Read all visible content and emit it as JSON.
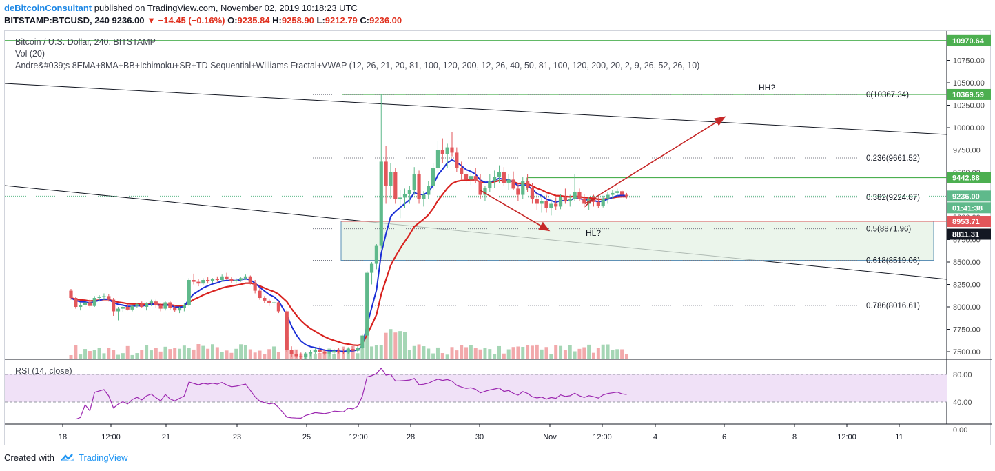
{
  "header": {
    "author": "deBitcoinConsultant",
    "published": "published on TradingView.com, November 02, 2019 10:18:23 UTC",
    "symbol_line": "BITSTAMP:BTCUSD, 240",
    "last": "9236.00",
    "change": "▼ −14.45 (−0.16%)",
    "o_label": "O:",
    "o": "9235.84",
    "h_label": "H:",
    "h": "9258.90",
    "l_label": "L:",
    "l": "9212.79",
    "c_label": "C:",
    "c": "9236.00"
  },
  "legend": {
    "title": "Bitcoin / U.S. Dollar, 240, BITSTAMP",
    "vol": "Vol (20)",
    "indicators": "Andre&#039;s 8EMA+8MA+BB+Ichimoku+SR+TD Sequential+Williams Fractal+VWAP (12, 26, 21, 20, 81, 100, 120, 200, 12, 26, 40, 50, 81, 100, 120, 200, 20, 2, 9, 26, 52, 26, 10)",
    "rsi": "RSI (14, close)"
  },
  "footer": {
    "created_with": "Created with",
    "brand": "TradingView"
  },
  "colors": {
    "up": "#5fb98b",
    "down": "#e2565a",
    "ema_blue": "#1b2fd6",
    "ma_red": "#d8221f",
    "level_green": "#4caf50",
    "arrow_red": "#c62828",
    "rsi_line": "#9c27b0",
    "rsi_fill": "#f0e1f7"
  },
  "chart_data": {
    "type": "candlestick",
    "symbol": "BITSTAMP:BTCUSD",
    "timeframe": "240",
    "ylim": [
      7500,
      11000
    ],
    "price_ticks": [
      "10750.00",
      "10500.00",
      "10250.00",
      "10000.00",
      "9750.00",
      "9500.00",
      "9250.00",
      "9000.00",
      "8750.00",
      "8500.00",
      "8250.00",
      "8000.00",
      "7750.00",
      "7500.00"
    ],
    "time_ticks": [
      "18",
      "12:00",
      "21",
      "23",
      "25",
      "12:00",
      "28",
      "30",
      "Nov",
      "12:00",
      "4",
      "6",
      "8",
      "12:00",
      "11"
    ],
    "price_tags": [
      {
        "text": "10970.64",
        "value": 10970.64,
        "kind": "green"
      },
      {
        "text": "10369.59",
        "value": 10369.59,
        "kind": "green"
      },
      {
        "text": "9442.88",
        "value": 9442.88,
        "kind": "green"
      },
      {
        "text": "9236.00",
        "value": 9236,
        "kind": "price"
      },
      {
        "text": "01:41:38",
        "value": 9150,
        "kind": "timer"
      },
      {
        "text": "8953.71",
        "value": 8953.71,
        "kind": "red"
      },
      {
        "text": "8811.31",
        "value": 8811.31,
        "kind": "black"
      }
    ],
    "fib_levels": [
      {
        "label": "0(10367.34)",
        "value": 10367.34
      },
      {
        "label": "0.236(9661.52)",
        "value": 9661.52
      },
      {
        "label": "0.382(9224.87)",
        "value": 9224.87
      },
      {
        "label": "0.5(8871.96)",
        "value": 8871.96
      },
      {
        "label": "0.618(8519.06)",
        "value": 8519.06
      },
      {
        "label": "0.786(8016.61)",
        "value": 8016.61
      }
    ],
    "annotations": [
      "HH?",
      "HL?"
    ],
    "candles": [
      [
        8180,
        8200,
        8080,
        8100
      ],
      [
        8100,
        8110,
        7980,
        8000
      ],
      [
        8000,
        8050,
        7960,
        8020
      ],
      [
        8020,
        8070,
        8000,
        8050
      ],
      [
        8050,
        8090,
        7990,
        8010
      ],
      [
        8010,
        8120,
        8000,
        8100
      ],
      [
        8100,
        8130,
        8060,
        8110
      ],
      [
        8110,
        8150,
        8080,
        8120
      ],
      [
        8120,
        8140,
        8060,
        8080
      ],
      [
        8080,
        8100,
        7900,
        7950
      ],
      [
        7950,
        8000,
        7850,
        7980
      ],
      [
        7980,
        8010,
        7940,
        8000
      ],
      [
        8000,
        8030,
        7960,
        7970
      ],
      [
        7970,
        8020,
        7950,
        8010
      ],
      [
        8010,
        8040,
        7990,
        8030
      ],
      [
        8030,
        8060,
        7990,
        8000
      ],
      [
        8000,
        8050,
        7960,
        8040
      ],
      [
        8040,
        8080,
        8010,
        8060
      ],
      [
        8060,
        8080,
        7990,
        8020
      ],
      [
        8020,
        8040,
        7950,
        7980
      ],
      [
        7980,
        8060,
        7960,
        8050
      ],
      [
        8050,
        8070,
        7970,
        7990
      ],
      [
        7990,
        8020,
        7940,
        7960
      ],
      [
        7960,
        8000,
        7930,
        7990
      ],
      [
        7990,
        8040,
        7950,
        8020
      ],
      [
        8020,
        8320,
        8010,
        8300
      ],
      [
        8300,
        8370,
        8250,
        8280
      ],
      [
        8280,
        8310,
        8230,
        8260
      ],
      [
        8260,
        8320,
        8240,
        8300
      ],
      [
        8300,
        8330,
        8260,
        8290
      ],
      [
        8290,
        8320,
        8270,
        8310
      ],
      [
        8310,
        8340,
        8280,
        8300
      ],
      [
        8300,
        8360,
        8280,
        8340
      ],
      [
        8340,
        8380,
        8300,
        8310
      ],
      [
        8310,
        8330,
        8270,
        8290
      ],
      [
        8290,
        8320,
        8260,
        8300
      ],
      [
        8300,
        8330,
        8280,
        8320
      ],
      [
        8320,
        8360,
        8300,
        8340
      ],
      [
        8340,
        8350,
        8250,
        8270
      ],
      [
        8270,
        8300,
        8150,
        8180
      ],
      [
        8180,
        8220,
        8080,
        8100
      ],
      [
        8100,
        8120,
        8040,
        8070
      ],
      [
        8070,
        8090,
        8010,
        8040
      ],
      [
        8040,
        8070,
        8020,
        8050
      ],
      [
        8050,
        8060,
        7930,
        7950
      ],
      [
        7950,
        7960,
        7500,
        7520
      ],
      [
        7520,
        7560,
        7440,
        7470
      ],
      [
        7470,
        7520,
        7430,
        7450
      ],
      [
        7450,
        7490,
        7410,
        7440
      ],
      [
        7440,
        7500,
        7420,
        7480
      ],
      [
        7480,
        7520,
        7450,
        7500
      ],
      [
        7500,
        7540,
        7470,
        7520
      ],
      [
        7520,
        7560,
        7480,
        7500
      ],
      [
        7500,
        7530,
        7460,
        7480
      ],
      [
        7480,
        7510,
        7450,
        7490
      ],
      [
        7490,
        7530,
        7460,
        7510
      ],
      [
        7510,
        7540,
        7480,
        7500
      ],
      [
        7500,
        7530,
        7470,
        7490
      ],
      [
        7490,
        7550,
        7470,
        7530
      ],
      [
        7530,
        7560,
        7500,
        7510
      ],
      [
        7510,
        7560,
        7490,
        7540
      ],
      [
        7540,
        7690,
        7530,
        7680
      ],
      [
        7680,
        8400,
        7660,
        8380
      ],
      [
        8380,
        8500,
        8250,
        8480
      ],
      [
        8480,
        8700,
        8420,
        8680
      ],
      [
        8680,
        10370,
        8650,
        9620
      ],
      [
        9620,
        9800,
        9150,
        9350
      ],
      [
        9350,
        9600,
        9200,
        9500
      ],
      [
        9500,
        9550,
        9150,
        9200
      ],
      [
        9200,
        9300,
        8990,
        9220
      ],
      [
        9220,
        9320,
        9100,
        9260
      ],
      [
        9260,
        9350,
        9150,
        9300
      ],
      [
        9300,
        9560,
        9250,
        9480
      ],
      [
        9480,
        9520,
        9150,
        9200
      ],
      [
        9200,
        9290,
        9120,
        9250
      ],
      [
        9250,
        9400,
        9200,
        9350
      ],
      [
        9350,
        9600,
        9300,
        9550
      ],
      [
        9550,
        9850,
        9500,
        9750
      ],
      [
        9750,
        9880,
        9600,
        9700
      ],
      [
        9700,
        9820,
        9550,
        9780
      ],
      [
        9780,
        9950,
        9680,
        9720
      ],
      [
        9720,
        9780,
        9500,
        9550
      ],
      [
        9550,
        9620,
        9420,
        9480
      ],
      [
        9480,
        9550,
        9380,
        9420
      ],
      [
        9420,
        9500,
        9360,
        9460
      ],
      [
        9460,
        9550,
        9380,
        9400
      ],
      [
        9400,
        9480,
        9200,
        9250
      ],
      [
        9250,
        9350,
        9180,
        9330
      ],
      [
        9330,
        9480,
        9280,
        9400
      ],
      [
        9400,
        9520,
        9330,
        9450
      ],
      [
        9450,
        9580,
        9380,
        9500
      ],
      [
        9500,
        9560,
        9350,
        9380
      ],
      [
        9380,
        9480,
        9300,
        9420
      ],
      [
        9420,
        9510,
        9300,
        9320
      ],
      [
        9320,
        9380,
        9180,
        9250
      ],
      [
        9250,
        9450,
        9200,
        9400
      ],
      [
        9400,
        9480,
        9280,
        9330
      ],
      [
        9330,
        9380,
        9150,
        9200
      ],
      [
        9200,
        9280,
        9080,
        9150
      ],
      [
        9150,
        9220,
        9050,
        9180
      ],
      [
        9180,
        9250,
        9050,
        9100
      ],
      [
        9100,
        9200,
        9020,
        9150
      ],
      [
        9150,
        9220,
        9080,
        9120
      ],
      [
        9120,
        9260,
        9090,
        9230
      ],
      [
        9230,
        9320,
        9150,
        9180
      ],
      [
        9180,
        9250,
        9120,
        9200
      ],
      [
        9200,
        9480,
        9180,
        9280
      ],
      [
        9280,
        9320,
        9180,
        9200
      ],
      [
        9200,
        9260,
        9100,
        9150
      ],
      [
        9150,
        9230,
        9080,
        9200
      ],
      [
        9200,
        9250,
        9120,
        9170
      ],
      [
        9170,
        9220,
        9100,
        9130
      ],
      [
        9130,
        9240,
        9110,
        9210
      ],
      [
        9210,
        9280,
        9150,
        9250
      ],
      [
        9250,
        9300,
        9200,
        9270
      ],
      [
        9270,
        9320,
        9230,
        9290
      ],
      [
        9290,
        9300,
        9220,
        9250
      ],
      [
        9250,
        9270,
        9210,
        9236
      ]
    ]
  }
}
